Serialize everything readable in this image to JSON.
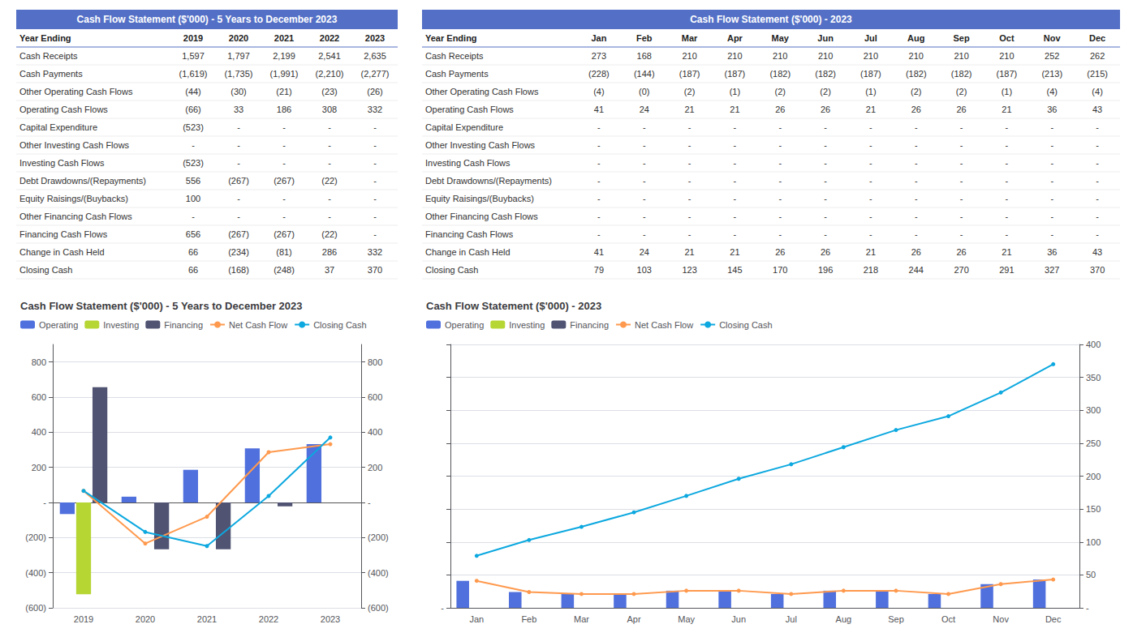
{
  "chart_data": [
    {
      "type": "table",
      "title": "Cash Flow Statement ($'000) - 5 Years to December 2023",
      "header": "Year Ending",
      "columns": [
        "2019",
        "2020",
        "2021",
        "2022",
        "2023"
      ],
      "rows": [
        {
          "label": "Cash Receipts",
          "values": [
            "1,597",
            "1,797",
            "2,199",
            "2,541",
            "2,635"
          ]
        },
        {
          "label": "Cash Payments",
          "values": [
            "(1,619)",
            "(1,735)",
            "(1,991)",
            "(2,210)",
            "(2,277)"
          ]
        },
        {
          "label": "Other Operating Cash Flows",
          "values": [
            "(44)",
            "(30)",
            "(21)",
            "(23)",
            "(26)"
          ]
        },
        {
          "label": "Operating Cash Flows",
          "values": [
            "(66)",
            "33",
            "186",
            "308",
            "332"
          ]
        },
        {
          "label": "Capital Expenditure",
          "values": [
            "(523)",
            "-",
            "-",
            "-",
            "-"
          ]
        },
        {
          "label": "Other Investing Cash Flows",
          "values": [
            "-",
            "-",
            "-",
            "-",
            "-"
          ]
        },
        {
          "label": "Investing Cash Flows",
          "values": [
            "(523)",
            "-",
            "-",
            "-",
            "-"
          ]
        },
        {
          "label": "Debt Drawdowns/(Repayments)",
          "values": [
            "556",
            "(267)",
            "(267)",
            "(22)",
            "-"
          ]
        },
        {
          "label": "Equity Raisings/(Buybacks)",
          "values": [
            "100",
            "-",
            "-",
            "-",
            "-"
          ]
        },
        {
          "label": "Other Financing Cash Flows",
          "values": [
            "-",
            "-",
            "-",
            "-",
            "-"
          ]
        },
        {
          "label": "Financing Cash Flows",
          "values": [
            "656",
            "(267)",
            "(267)",
            "(22)",
            "-"
          ]
        },
        {
          "label": "Change in Cash Held",
          "values": [
            "66",
            "(234)",
            "(81)",
            "286",
            "332"
          ]
        },
        {
          "label": "Closing Cash",
          "values": [
            "66",
            "(168)",
            "(248)",
            "37",
            "370"
          ]
        }
      ]
    },
    {
      "type": "table",
      "title": "Cash Flow Statement ($'000) - 2023",
      "header": "Year Ending",
      "columns": [
        "Jan",
        "Feb",
        "Mar",
        "Apr",
        "May",
        "Jun",
        "Jul",
        "Aug",
        "Sep",
        "Oct",
        "Nov",
        "Dec"
      ],
      "rows": [
        {
          "label": "Cash Receipts",
          "values": [
            "273",
            "168",
            "210",
            "210",
            "210",
            "210",
            "210",
            "210",
            "210",
            "210",
            "252",
            "262"
          ]
        },
        {
          "label": "Cash Payments",
          "values": [
            "(228)",
            "(144)",
            "(187)",
            "(187)",
            "(182)",
            "(182)",
            "(187)",
            "(182)",
            "(182)",
            "(187)",
            "(213)",
            "(215)"
          ]
        },
        {
          "label": "Other Operating Cash Flows",
          "values": [
            "(4)",
            "(0)",
            "(2)",
            "(1)",
            "(2)",
            "(2)",
            "(1)",
            "(2)",
            "(2)",
            "(1)",
            "(4)",
            "(4)"
          ]
        },
        {
          "label": "Operating Cash Flows",
          "values": [
            "41",
            "24",
            "21",
            "21",
            "26",
            "26",
            "21",
            "26",
            "26",
            "21",
            "36",
            "43"
          ]
        },
        {
          "label": "Capital Expenditure",
          "values": [
            "-",
            "-",
            "-",
            "-",
            "-",
            "-",
            "-",
            "-",
            "-",
            "-",
            "-",
            "-"
          ]
        },
        {
          "label": "Other Investing Cash Flows",
          "values": [
            "-",
            "-",
            "-",
            "-",
            "-",
            "-",
            "-",
            "-",
            "-",
            "-",
            "-",
            "-"
          ]
        },
        {
          "label": "Investing Cash Flows",
          "values": [
            "-",
            "-",
            "-",
            "-",
            "-",
            "-",
            "-",
            "-",
            "-",
            "-",
            "-",
            "-"
          ]
        },
        {
          "label": "Debt Drawdowns/(Repayments)",
          "values": [
            "-",
            "-",
            "-",
            "-",
            "-",
            "-",
            "-",
            "-",
            "-",
            "-",
            "-",
            "-"
          ]
        },
        {
          "label": "Equity Raisings/(Buybacks)",
          "values": [
            "-",
            "-",
            "-",
            "-",
            "-",
            "-",
            "-",
            "-",
            "-",
            "-",
            "-",
            "-"
          ]
        },
        {
          "label": "Other Financing Cash Flows",
          "values": [
            "-",
            "-",
            "-",
            "-",
            "-",
            "-",
            "-",
            "-",
            "-",
            "-",
            "-",
            "-"
          ]
        },
        {
          "label": "Financing Cash Flows",
          "values": [
            "-",
            "-",
            "-",
            "-",
            "-",
            "-",
            "-",
            "-",
            "-",
            "-",
            "-",
            "-"
          ]
        },
        {
          "label": "Change in Cash Held",
          "values": [
            "41",
            "24",
            "21",
            "21",
            "26",
            "26",
            "21",
            "26",
            "26",
            "21",
            "36",
            "43"
          ]
        },
        {
          "label": "Closing Cash",
          "values": [
            "79",
            "103",
            "123",
            "145",
            "170",
            "196",
            "218",
            "244",
            "270",
            "291",
            "327",
            "370"
          ]
        }
      ]
    },
    {
      "type": "bar",
      "title": "Cash Flow Statement ($'000) - 5 Years to December 2023",
      "categories": [
        "2019",
        "2020",
        "2021",
        "2022",
        "2023"
      ],
      "series": [
        {
          "name": "Operating",
          "type": "bar",
          "values": [
            -66,
            33,
            186,
            308,
            332
          ]
        },
        {
          "name": "Investing",
          "type": "bar",
          "values": [
            -523,
            0,
            0,
            0,
            0
          ]
        },
        {
          "name": "Financing",
          "type": "bar",
          "values": [
            656,
            -267,
            -267,
            -22,
            0
          ]
        },
        {
          "name": "Net Cash Flow",
          "type": "line",
          "marker": "circle",
          "axis": "y2",
          "values": [
            66,
            -234,
            -81,
            286,
            332
          ]
        },
        {
          "name": "Closing Cash",
          "type": "line",
          "marker": "circle",
          "axis": "y2",
          "values": [
            66,
            -168,
            -248,
            37,
            370
          ]
        }
      ],
      "legend_entries": [
        "Operating",
        "Investing",
        "Financing",
        "Net Cash Flow",
        "Closing Cash"
      ],
      "legend": "upper left",
      "ylim": [
        -600,
        900
      ],
      "yticks": [
        {
          "value": -600,
          "label": "(600)"
        },
        {
          "value": -400,
          "label": "(400)"
        },
        {
          "value": -200,
          "label": "(200)"
        },
        {
          "value": 0,
          "label": "-"
        },
        200,
        400,
        600,
        800
      ],
      "y2lim": [
        -600,
        900
      ],
      "y2ticks": [
        {
          "value": -600,
          "label": "(600)"
        },
        {
          "value": -400,
          "label": "(400)"
        },
        {
          "value": -200,
          "label": "(200)"
        },
        {
          "value": 0,
          "label": "-"
        },
        200,
        400,
        600,
        800
      ],
      "grid": true
    },
    {
      "type": "bar",
      "title": "Cash Flow Statement ($'000) - 2023",
      "categories": [
        "Jan",
        "Feb",
        "Mar",
        "Apr",
        "May",
        "Jun",
        "Jul",
        "Aug",
        "Sep",
        "Oct",
        "Nov",
        "Dec"
      ],
      "series": [
        {
          "name": "Operating",
          "type": "bar",
          "values": [
            41,
            24,
            21,
            21,
            26,
            26,
            21,
            26,
            26,
            21,
            36,
            43
          ]
        },
        {
          "name": "Net Cash Flow",
          "type": "line",
          "marker": "circle",
          "axis": "y2",
          "values": [
            41,
            24,
            21,
            21,
            26,
            26,
            21,
            26,
            26,
            21,
            36,
            43
          ]
        },
        {
          "name": "Closing Cash",
          "type": "line",
          "marker": "circle",
          "axis": "y2",
          "values": [
            79,
            103,
            123,
            145,
            170,
            196,
            218,
            244,
            270,
            291,
            327,
            370
          ]
        }
      ],
      "legend_entries": [
        "Operating",
        "Investing",
        "Financing",
        "Net Cash Flow",
        "Closing Cash"
      ],
      "legend": "upper left",
      "ylim": [
        0,
        400
      ],
      "yticks": [
        {
          "value": 0,
          "label": "-"
        },
        {
          "value": 50,
          "label": null
        },
        {
          "value": 100,
          "label": null
        },
        {
          "value": 150,
          "label": null
        },
        {
          "value": 200,
          "label": null
        },
        {
          "value": 250,
          "label": null
        },
        {
          "value": 300,
          "label": null
        },
        {
          "value": 350,
          "label": null
        },
        {
          "value": 400,
          "label": null
        }
      ],
      "y2lim": [
        0,
        400
      ],
      "y2ticks": [
        {
          "value": 0,
          "label": "-"
        },
        50,
        100,
        150,
        200,
        250,
        300,
        350,
        400
      ],
      "grid": true
    }
  ]
}
